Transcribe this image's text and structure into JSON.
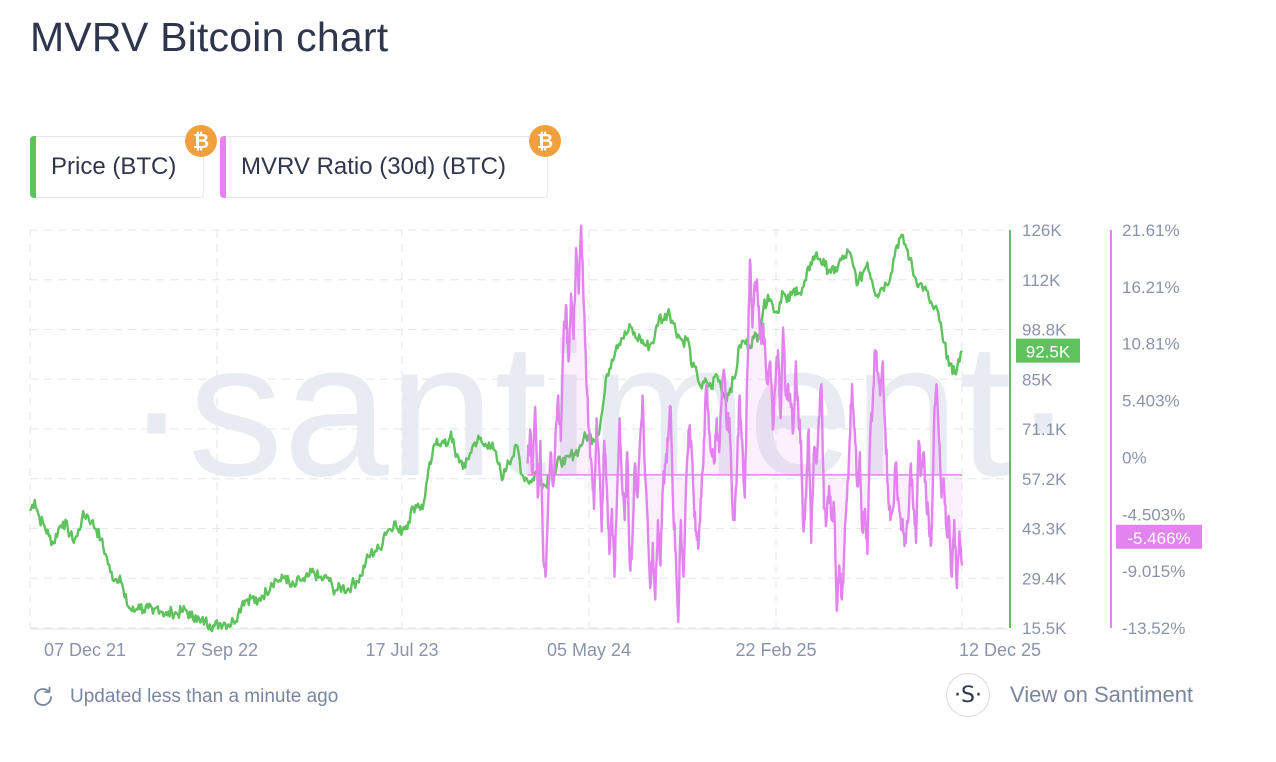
{
  "page": {
    "title": "MVRV Bitcoin chart",
    "footer_updated": "Updated less than a minute ago",
    "footer_link": "View on Santiment",
    "watermark": "·santiment·",
    "logo_letter": "·S·",
    "coin_glyph": "₿"
  },
  "metrics": [
    {
      "label": "Price (BTC)",
      "color": "#5ec35d",
      "icon": "bitcoin-icon"
    },
    {
      "label": "MVRV Ratio (30d) (BTC)",
      "color": "#e383f0",
      "icon": "bitcoin-icon"
    }
  ],
  "chart_data": {
    "type": "line",
    "x_tick_labels": [
      "07 Dec 21",
      "27 Sep 22",
      "17 Jul 23",
      "05 May 24",
      "22 Feb 25",
      "12 Dec 25"
    ],
    "grid": true,
    "series": [
      {
        "name": "Price (BTC)",
        "color": "#5ec35d",
        "axis": "left",
        "y_tick_labels": [
          "126K",
          "112K",
          "98.8K",
          "85K",
          "71.1K",
          "57.2K",
          "43.3K",
          "29.4K",
          "15.5K"
        ],
        "ylim": [
          15500,
          126000
        ],
        "current_label": "92.5K",
        "current_value": 92500,
        "x_start": "2021-11-24",
        "x_end": "2025-11-24",
        "values": [
          48000,
          51000,
          46000,
          44000,
          41000,
          39000,
          43000,
          45000,
          43000,
          40000,
          41000,
          46000,
          47000,
          45000,
          43000,
          40000,
          36000,
          31000,
          29000,
          30000,
          24000,
          21000,
          20000,
          22000,
          20500,
          21000,
          19500,
          21500,
          20000,
          19000,
          20000,
          19500,
          20000,
          20500,
          18500,
          19000,
          17000,
          17500,
          16500,
          16000,
          16800,
          17000,
          16500,
          17500,
          19500,
          23000,
          23500,
          24000,
          22000,
          24500,
          25500,
          28000,
          29000,
          28500,
          30000,
          27000,
          27000,
          29000,
          28500,
          30000,
          31000,
          29500,
          29000,
          29500,
          26500,
          26000,
          27000,
          26000,
          27500,
          28500,
          30000,
          34000,
          36000,
          37000,
          37500,
          42000,
          43000,
          45000,
          42000,
          43500,
          45000,
          49000,
          50000,
          48500,
          57000,
          63000,
          68000,
          67000,
          66000,
          70000,
          63000,
          62000,
          60000,
          64000,
          67000,
          68000,
          66000,
          67000,
          65000,
          61000,
          57000,
          62000,
          63000,
          66000,
          58000,
          57000,
          56000,
          59000,
          56000,
          55000,
          60000,
          58000,
          63000,
          61000,
          63000,
          64000,
          65000,
          68000,
          69000,
          68000,
          69000,
          76000,
          86000,
          90000,
          94000,
          96000,
          97000,
          99000,
          96000,
          96000,
          94000,
          94000,
          96000,
          102000,
          101000,
          104000,
          100000,
          97000,
          95000,
          96000,
          88000,
          86000,
          82000,
          84000,
          82000,
          86000,
          83000,
          79000,
          82000,
          85000,
          94000,
          95000,
          94000,
          96000,
          97000,
          104000,
          108000,
          105000,
          103000,
          109000,
          106000,
          108000,
          110000,
          108000,
          112000,
          117000,
          119000,
          118000,
          116000,
          115000,
          114000,
          117000,
          118000,
          120000,
          116000,
          111000,
          114000,
          117000,
          112000,
          108000,
          110000,
          111000,
          114000,
          121000,
          124000,
          122000,
          118000,
          113000,
          111000,
          110000,
          107000,
          104000,
          103000,
          95000,
          91000,
          86000,
          88000,
          92500
        ]
      },
      {
        "name": "MVRV Ratio (30d) (BTC)",
        "color": "#e383f0",
        "axis": "right",
        "y_tick_labels": [
          "21.61%",
          "16.21%",
          "10.81%",
          "5.403%",
          "0%",
          "-4.503%",
          "-9.015%",
          "-13.52%"
        ],
        "ylim": [
          -13.52,
          21.61
        ],
        "current_label": "-5.466%",
        "current_value": -5.466,
        "x_start": "2024-01-13",
        "x_end": "2025-11-24",
        "values": [
          1,
          4,
          0,
          6,
          -2,
          3,
          -6,
          -9,
          -3,
          2,
          -1,
          4,
          7,
          3,
          12,
          15,
          10,
          16,
          12,
          20,
          16,
          22,
          15,
          8,
          4,
          1,
          -3,
          5,
          1,
          -5,
          3,
          -1,
          -7,
          -3,
          -9,
          -2,
          5,
          -1,
          -4,
          2,
          -8,
          -6,
          1,
          -2,
          3,
          7,
          0,
          -4,
          -10,
          -6,
          -11,
          -4,
          -8,
          -1,
          1,
          3,
          6,
          -3,
          -7,
          -13,
          -4,
          -9,
          -1,
          4,
          3,
          -2,
          -5,
          -6,
          -2,
          3,
          8,
          4,
          2,
          1,
          5,
          2,
          7,
          9,
          4,
          5,
          -2,
          -4,
          1,
          7,
          3,
          -2,
          9,
          19,
          13,
          17,
          16,
          12,
          13,
          11,
          8,
          10,
          4,
          8,
          11,
          5,
          13,
          7,
          8,
          6,
          4,
          10,
          5,
          3,
          -5,
          -2,
          4,
          -6,
          2,
          1,
          5,
          8,
          -3,
          -4,
          -1,
          -4,
          -3,
          -12,
          -8,
          -11,
          -6,
          -2,
          3,
          8,
          4,
          -1,
          2,
          -5,
          -3,
          -7,
          3,
          6,
          11,
          9,
          7,
          10,
          4,
          -1,
          -4,
          -3,
          1,
          -2,
          -4,
          -5,
          -6,
          -4,
          1,
          -3,
          -6,
          3,
          0,
          2,
          -2,
          -4,
          -6,
          4,
          8,
          3,
          -2,
          -1,
          -5,
          -4,
          -9,
          -4,
          -10,
          -5,
          -8
        ]
      }
    ]
  }
}
